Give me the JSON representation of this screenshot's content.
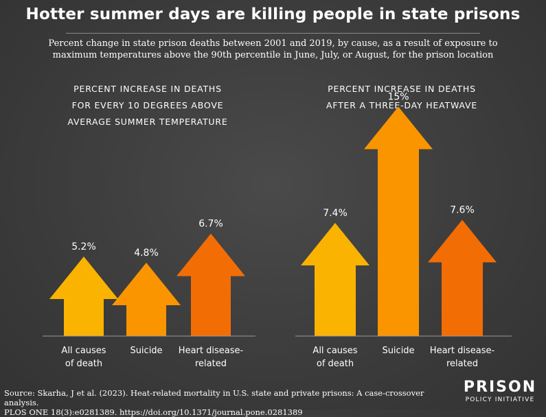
{
  "title": "Hotter summer days are killing people in state prisons",
  "subtitle": "Percent change in state prison deaths between 2001 and 2019, by cause, as a result of exposure to maximum temperatures above the 90th percentile in June, July, or August, for the prison location",
  "colors": {
    "all_causes": "#f9b300",
    "suicide": "#fa9500",
    "heart": "#f36d05",
    "baseline": "#9a9a9a"
  },
  "chart_data": [
    {
      "type": "bar",
      "title": "PERCENT INCREASE IN DEATHS FOR EVERY 10 DEGREES ABOVE AVERAGE SUMMER TEMPERATURE",
      "title_lines": [
        "PERCENT INCREASE IN DEATHS",
        "FOR EVERY 10 DEGREES ABOVE",
        "AVERAGE SUMMER TEMPERATURE"
      ],
      "categories": [
        "All causes of death",
        "Suicide",
        "Heart disease-related"
      ],
      "category_lines": [
        [
          "All causes",
          "of death"
        ],
        [
          "Suicide"
        ],
        [
          "Heart disease-",
          "related"
        ]
      ],
      "values": [
        5.2,
        4.8,
        6.7
      ],
      "labels": [
        "5.2%",
        "4.8%",
        "6.7%"
      ],
      "ylim": [
        0,
        15
      ]
    },
    {
      "type": "bar",
      "title": "PERCENT INCREASE IN DEATHS AFTER A THREE-DAY HEATWAVE",
      "title_lines": [
        "PERCENT INCREASE IN DEATHS",
        "AFTER A THREE-DAY HEATWAVE"
      ],
      "categories": [
        "All causes of death",
        "Suicide",
        "Heart disease-related"
      ],
      "category_lines": [
        [
          "All causes",
          "of death"
        ],
        [
          "Suicide"
        ],
        [
          "Heart disease-",
          "related"
        ]
      ],
      "values": [
        7.4,
        15,
        7.6
      ],
      "labels": [
        "7.4%",
        "15%",
        "7.6%"
      ],
      "ylim": [
        0,
        15
      ]
    }
  ],
  "source_lines": [
    "Source: Skarha, J et al. (2023). Heat-related mortality in U.S. state and private prisons: A case-crossover analysis.",
    "PLOS ONE 18(3):e0281389. https://doi.org/10.1371/journal.pone.0281389"
  ],
  "logo": {
    "main": "PRISON",
    "sub": "POLICY INITIATIVE"
  }
}
